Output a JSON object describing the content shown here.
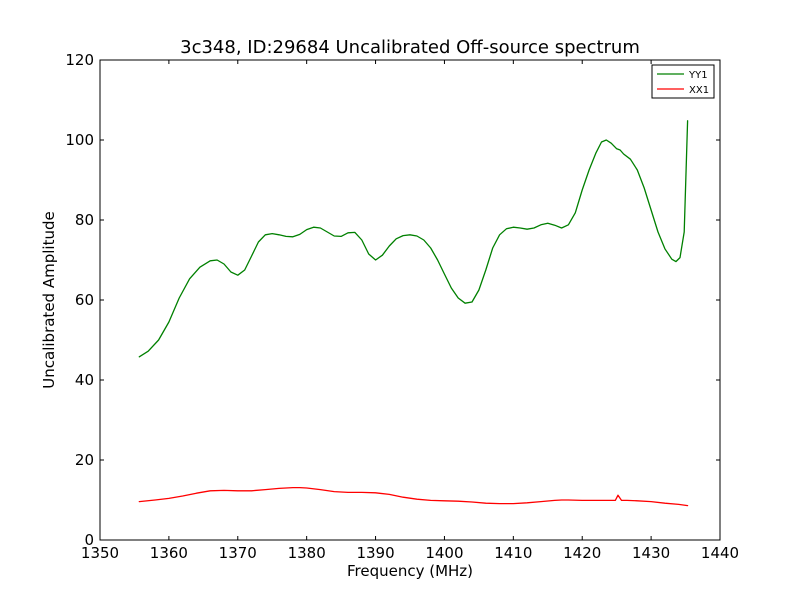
{
  "chart_data": {
    "type": "line",
    "title": "3c348, ID:29684 Uncalibrated Off-source spectrum",
    "xlabel": "Frequency (MHz)",
    "ylabel": "Uncalibrated Amplitude",
    "xlim": [
      1350,
      1440
    ],
    "ylim": [
      0,
      120
    ],
    "xticks": [
      1350,
      1360,
      1370,
      1380,
      1390,
      1400,
      1410,
      1420,
      1430,
      1440
    ],
    "yticks": [
      0,
      20,
      40,
      60,
      80,
      100,
      120
    ],
    "grid": false,
    "legend_position": "top-right",
    "series": [
      {
        "name": "YY1",
        "color": "#008000",
        "x": [
          1355.7,
          1357.0,
          1358.5,
          1360.0,
          1361.5,
          1363.0,
          1364.5,
          1366.0,
          1367.0,
          1368.0,
          1369.0,
          1370.0,
          1371.0,
          1372.0,
          1373.0,
          1374.0,
          1375.0,
          1376.0,
          1377.0,
          1378.0,
          1379.0,
          1380.0,
          1381.0,
          1382.0,
          1383.0,
          1384.0,
          1385.0,
          1386.0,
          1387.0,
          1388.0,
          1389.0,
          1390.0,
          1391.0,
          1392.0,
          1393.0,
          1394.0,
          1395.0,
          1396.0,
          1397.0,
          1398.0,
          1399.0,
          1400.0,
          1401.0,
          1402.0,
          1403.0,
          1404.0,
          1405.0,
          1406.0,
          1407.0,
          1408.0,
          1409.0,
          1410.0,
          1411.0,
          1412.0,
          1413.0,
          1414.0,
          1415.0,
          1416.0,
          1417.0,
          1418.0,
          1419.0,
          1420.0,
          1421.0,
          1422.0,
          1422.8,
          1423.5,
          1424.2,
          1425.0,
          1425.5,
          1426.0,
          1427.0,
          1428.0,
          1429.0,
          1430.0,
          1431.0,
          1432.0,
          1433.0,
          1433.6,
          1434.2,
          1434.8,
          1435.3
        ],
        "values": [
          45.8,
          47.2,
          50.0,
          54.5,
          60.5,
          65.3,
          68.2,
          69.8,
          70.0,
          69.0,
          67.0,
          66.2,
          67.5,
          71.0,
          74.5,
          76.3,
          76.6,
          76.3,
          75.9,
          75.8,
          76.4,
          77.6,
          78.2,
          78.0,
          77.0,
          76.0,
          75.9,
          76.8,
          76.9,
          75.0,
          71.5,
          70.0,
          71.2,
          73.5,
          75.3,
          76.1,
          76.3,
          76.0,
          75.0,
          73.0,
          70.0,
          66.5,
          63.0,
          60.5,
          59.2,
          59.5,
          62.5,
          67.5,
          73.0,
          76.3,
          77.8,
          78.2,
          78.0,
          77.7,
          78.0,
          78.8,
          79.2,
          78.7,
          78.0,
          78.8,
          81.8,
          87.5,
          92.5,
          96.8,
          99.5,
          100.0,
          99.2,
          97.8,
          97.5,
          96.5,
          95.2,
          92.5,
          88.0,
          82.5,
          77.0,
          72.8,
          70.2,
          69.6,
          70.6,
          77.0,
          104.8
        ]
      },
      {
        "name": "XX1",
        "color": "#ff0000",
        "x": [
          1355.7,
          1358.0,
          1360.0,
          1362.0,
          1364.0,
          1366.0,
          1368.0,
          1370.0,
          1372.0,
          1374.0,
          1376.0,
          1378.0,
          1379.0,
          1380.0,
          1382.0,
          1384.0,
          1386.0,
          1388.0,
          1390.0,
          1392.0,
          1394.0,
          1396.0,
          1398.0,
          1400.0,
          1402.0,
          1404.0,
          1406.0,
          1408.0,
          1410.0,
          1412.0,
          1414.0,
          1416.0,
          1417.0,
          1418.0,
          1420.0,
          1422.0,
          1424.0,
          1424.8,
          1425.2,
          1425.7,
          1426.5,
          1428.0,
          1430.0,
          1432.0,
          1434.0,
          1435.3
        ],
        "values": [
          9.6,
          10.0,
          10.4,
          11.0,
          11.7,
          12.3,
          12.4,
          12.3,
          12.3,
          12.6,
          12.9,
          13.1,
          13.1,
          13.0,
          12.6,
          12.1,
          11.9,
          11.9,
          11.8,
          11.4,
          10.7,
          10.2,
          9.9,
          9.8,
          9.7,
          9.5,
          9.2,
          9.1,
          9.1,
          9.3,
          9.6,
          9.9,
          10.0,
          10.0,
          9.9,
          9.9,
          9.9,
          9.9,
          11.2,
          9.9,
          9.9,
          9.8,
          9.6,
          9.2,
          8.9,
          8.6
        ]
      }
    ]
  }
}
